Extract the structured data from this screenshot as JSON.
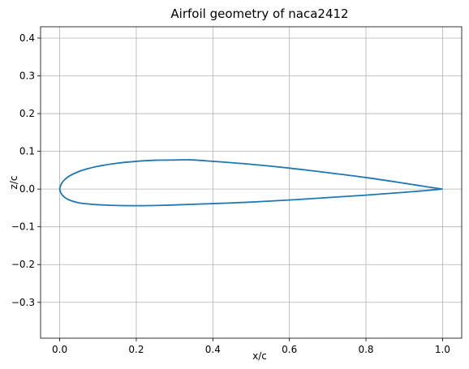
{
  "chart_data": {
    "type": "line",
    "title": "Airfoil geometry of naca2412",
    "xlabel": "x/c",
    "ylabel": "z/c",
    "xlim": [
      -0.05,
      1.05
    ],
    "ylim": [
      -0.395,
      0.43
    ],
    "xticks": [
      0.0,
      0.2,
      0.4,
      0.6,
      0.8,
      1.0
    ],
    "xtick_labels": [
      "0.0",
      "0.2",
      "0.4",
      "0.6",
      "0.8",
      "1.0"
    ],
    "yticks": [
      -0.3,
      -0.2,
      -0.1,
      0.0,
      0.1,
      0.2,
      0.3,
      0.4
    ],
    "ytick_labels": [
      "−0.3",
      "−0.2",
      "−0.1",
      "0.0",
      "0.1",
      "0.2",
      "0.3",
      "0.4"
    ],
    "grid": true,
    "series": [
      {
        "color": "#1f77b4",
        "x": [
          1.0,
          0.95,
          0.9,
          0.8,
          0.7,
          0.6,
          0.5,
          0.4,
          0.34,
          0.3,
          0.25,
          0.2,
          0.15,
          0.1,
          0.075,
          0.05,
          0.025,
          0.0125,
          0.005,
          0.0,
          0.005,
          0.0125,
          0.025,
          0.05,
          0.075,
          0.1,
          0.15,
          0.2,
          0.22,
          0.25,
          0.3,
          0.4,
          0.5,
          0.6,
          0.7,
          0.8,
          0.9,
          0.95,
          1.0
        ],
        "y": [
          0.0,
          0.0075,
          0.0155,
          0.0305,
          0.0435,
          0.0555,
          0.0655,
          0.0735,
          0.0775,
          0.077,
          0.0765,
          0.0735,
          0.0685,
          0.0605,
          0.0545,
          0.0465,
          0.0345,
          0.0245,
          0.015,
          0.0,
          -0.0135,
          -0.0215,
          -0.029,
          -0.0365,
          -0.0395,
          -0.0415,
          -0.0435,
          -0.044,
          -0.044,
          -0.0435,
          -0.042,
          -0.0385,
          -0.0345,
          -0.029,
          -0.0225,
          -0.016,
          -0.0085,
          -0.0045,
          0.0
        ]
      }
    ]
  }
}
